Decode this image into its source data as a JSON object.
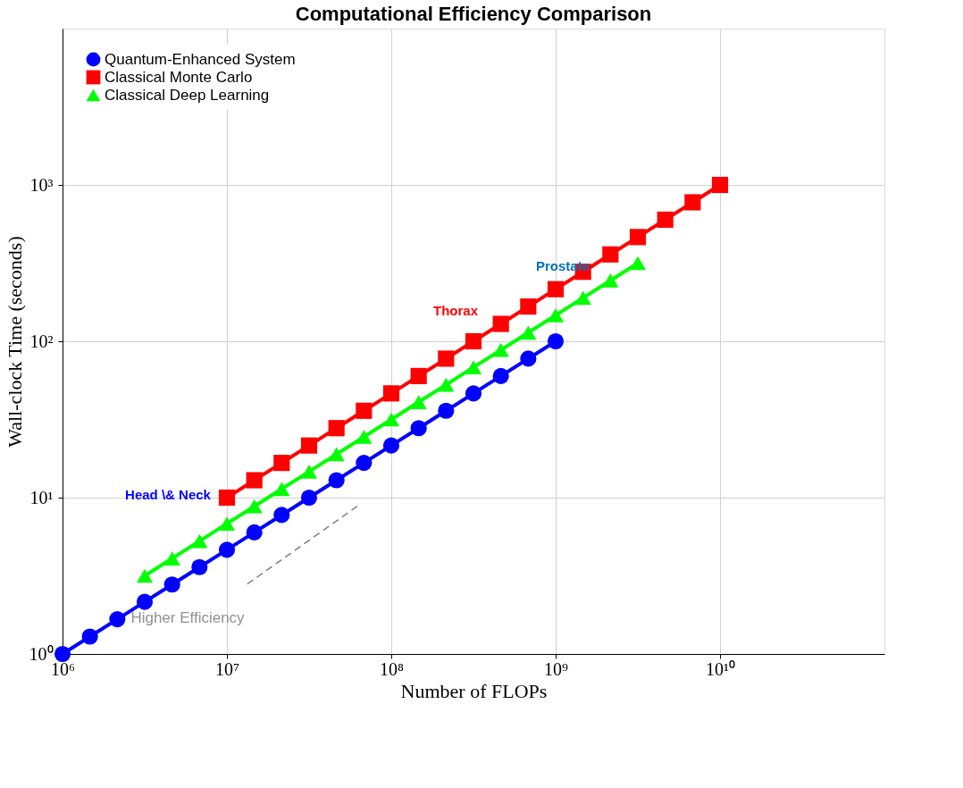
{
  "chart_data": {
    "type": "line",
    "title": "Computational Efficiency Comparison",
    "xlabel": "Number of FLOPs",
    "ylabel": "Wall-clock Time (seconds)",
    "log": "xy",
    "grid": true,
    "legend": "top left",
    "line_style": "solid",
    "xlim": [
      1000000,
      100000000000
    ],
    "ylim": [
      1,
      10000
    ],
    "xticks": [
      {
        "value": 1000000,
        "label": "10⁶"
      },
      {
        "value": 10000000,
        "label": "10⁷"
      },
      {
        "value": 100000000,
        "label": "10⁸"
      },
      {
        "value": 1000000000,
        "label": "10⁹"
      },
      {
        "value": 10000000000,
        "label": "10¹⁰"
      }
    ],
    "yticks": [
      {
        "value": 1,
        "label": "10⁰"
      },
      {
        "value": 10,
        "label": "10¹"
      },
      {
        "value": 100,
        "label": "10²"
      },
      {
        "value": 1000,
        "label": "10³"
      }
    ],
    "series": [
      {
        "name": "Quantum-Enhanced System",
        "color": "#0000ff",
        "marker": "circle",
        "x": [
          1000000,
          1468000,
          2154000,
          3162000,
          4642000,
          6813000,
          10000000,
          14680000,
          21540000,
          31620000,
          46420000,
          68130000,
          100000000,
          146800000,
          215400000,
          316200000,
          464200000,
          681300000,
          1000000000
        ],
        "values": [
          1,
          1.292,
          1.668,
          2.154,
          2.783,
          3.594,
          4.642,
          5.995,
          7.743,
          10,
          12.92,
          16.68,
          21.54,
          27.83,
          35.94,
          46.42,
          59.95,
          77.43,
          100
        ]
      },
      {
        "name": "Classical Monte Carlo",
        "color": "#ff0000",
        "marker": "square",
        "x": [
          10000000,
          14680000,
          21540000,
          31620000,
          46420000,
          68130000,
          100000000,
          146800000,
          215400000,
          316200000,
          464200000,
          681300000,
          1000000000,
          1468000000,
          2154000000,
          3162000000,
          4642000000,
          6813000000,
          10000000000
        ],
        "values": [
          10,
          12.92,
          16.68,
          21.54,
          27.83,
          35.94,
          46.42,
          59.95,
          77.43,
          100,
          129.2,
          166.8,
          215.4,
          278.3,
          359.4,
          464.2,
          599.5,
          774.3,
          1000
        ]
      },
      {
        "name": "Classical Deep Learning",
        "color": "#00ff00",
        "marker": "triangle",
        "x": [
          3162000,
          4642000,
          6813000,
          10000000,
          14680000,
          21540000,
          31620000,
          46420000,
          68130000,
          100000000,
          146800000,
          215400000,
          316200000,
          464200000,
          681300000,
          1000000000,
          1468000000,
          2154000000,
          3162000000
        ],
        "values": [
          3.162,
          4.084,
          5.275,
          6.813,
          8.799,
          11.36,
          14.68,
          18.96,
          24.48,
          31.62,
          40.84,
          52.75,
          68.13,
          87.99,
          113.6,
          146.8,
          189.6,
          244.8,
          316.2
        ]
      },
      {
        "color": "#808080",
        "marker": "none",
        "line_style": "dashed",
        "x": [
          13300000,
          62000000
        ],
        "values": [
          2.8,
          8.8
        ]
      }
    ],
    "annotations": [
      "Head \\& Neck",
      "Thorax",
      "Prostate",
      "Higher Efficiency"
    ]
  }
}
